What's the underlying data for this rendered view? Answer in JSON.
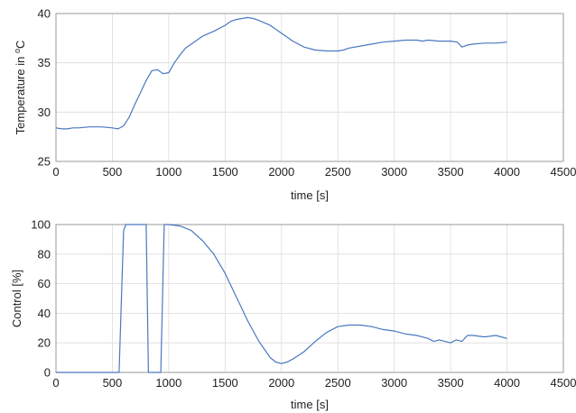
{
  "chart_data": [
    {
      "type": "line",
      "title": "",
      "xlabel": "time [s]",
      "ylabel_prefix": "Temperature in ",
      "ylabel_sup": "o",
      "ylabel_suffix": "C",
      "xlim": [
        0,
        4500
      ],
      "ylim": [
        25,
        40
      ],
      "xticks": [
        0,
        500,
        1000,
        1500,
        2000,
        2500,
        3000,
        3500,
        4000,
        4500
      ],
      "yticks": [
        25,
        30,
        35,
        40
      ],
      "grid": true,
      "color": "#4a78c0",
      "x": [
        0,
        50,
        100,
        150,
        200,
        300,
        400,
        500,
        550,
        600,
        650,
        700,
        750,
        800,
        850,
        900,
        950,
        1000,
        1050,
        1100,
        1150,
        1200,
        1300,
        1400,
        1500,
        1550,
        1600,
        1650,
        1700,
        1750,
        1800,
        1900,
        2000,
        2100,
        2200,
        2300,
        2400,
        2500,
        2550,
        2600,
        2700,
        2800,
        2900,
        3000,
        3100,
        3200,
        3250,
        3300,
        3400,
        3500,
        3560,
        3600,
        3650,
        3700,
        3800,
        3900,
        4000
      ],
      "y": [
        28.4,
        28.3,
        28.3,
        28.4,
        28.4,
        28.5,
        28.5,
        28.4,
        28.3,
        28.6,
        29.5,
        30.8,
        32.0,
        33.2,
        34.2,
        34.3,
        33.9,
        34.0,
        35.0,
        35.8,
        36.5,
        36.9,
        37.7,
        38.2,
        38.8,
        39.2,
        39.4,
        39.5,
        39.6,
        39.5,
        39.3,
        38.8,
        38.0,
        37.2,
        36.6,
        36.3,
        36.2,
        36.2,
        36.3,
        36.5,
        36.7,
        36.9,
        37.1,
        37.2,
        37.3,
        37.3,
        37.2,
        37.3,
        37.2,
        37.2,
        37.1,
        36.6,
        36.8,
        36.9,
        37.0,
        37.0,
        37.1
      ]
    },
    {
      "type": "line",
      "title": "",
      "xlabel": "time [s]",
      "ylabel": "Control [%]",
      "xlim": [
        0,
        4500
      ],
      "ylim": [
        0,
        100
      ],
      "xticks": [
        0,
        500,
        1000,
        1500,
        2000,
        2500,
        3000,
        3500,
        4000,
        4500
      ],
      "yticks": [
        0,
        20,
        40,
        60,
        80,
        100
      ],
      "grid": true,
      "color": "#4a78c0",
      "x": [
        0,
        560,
        600,
        620,
        700,
        800,
        820,
        840,
        930,
        960,
        1000,
        1100,
        1200,
        1300,
        1400,
        1500,
        1600,
        1700,
        1800,
        1900,
        1950,
        2000,
        2050,
        2100,
        2200,
        2300,
        2400,
        2500,
        2600,
        2700,
        2800,
        2900,
        3000,
        3100,
        3200,
        3300,
        3350,
        3400,
        3500,
        3550,
        3600,
        3650,
        3700,
        3800,
        3900,
        4000
      ],
      "y": [
        0,
        0,
        96,
        100,
        100,
        100,
        0,
        0,
        0,
        100,
        100,
        99,
        96,
        89,
        80,
        67,
        51,
        35,
        21,
        10,
        7,
        6,
        7,
        9,
        14,
        21,
        27,
        31,
        32,
        32,
        31,
        29,
        28,
        26,
        25,
        23,
        21,
        22,
        20,
        22,
        21,
        25,
        25,
        24,
        25,
        23
      ]
    }
  ]
}
